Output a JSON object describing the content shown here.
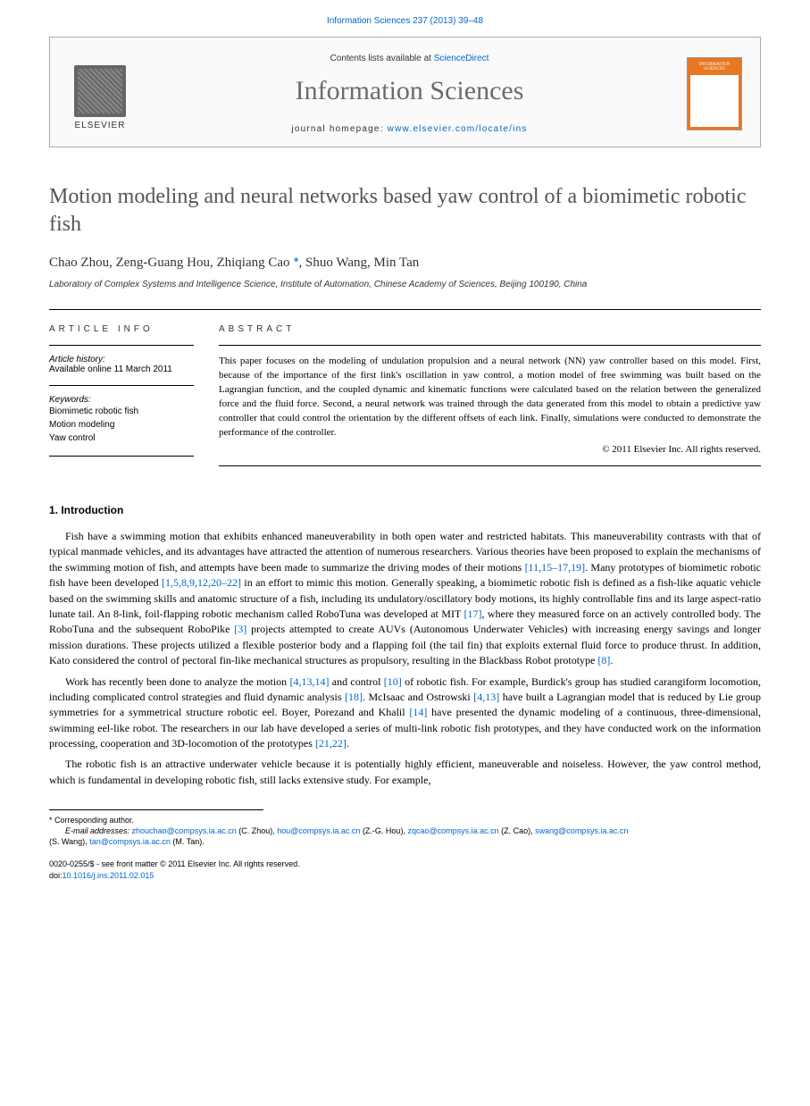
{
  "header": {
    "top_link": "Information Sciences 237 (2013) 39–48",
    "contents_line_prefix": "Contents lists available at ",
    "contents_line_link": "ScienceDirect",
    "journal_title": "Information Sciences",
    "homepage_prefix": "journal homepage: ",
    "homepage_url": "www.elsevier.com/locate/ins",
    "elsevier_label": "ELSEVIER",
    "cover_label": "INFORMATION SCIENCES"
  },
  "article": {
    "title": "Motion modeling and neural networks based yaw control of a biomimetic robotic fish",
    "authors_prefix": "Chao Zhou, Zeng-Guang Hou, Zhiqiang Cao",
    "corr_mark": " *",
    "authors_suffix": ", Shuo Wang, Min Tan",
    "affiliation": "Laboratory of Complex Systems and Intelligence Science, Institute of Automation, Chinese Academy of Sciences, Beijing 100190, China"
  },
  "meta": {
    "article_info_heading": "ARTICLE INFO",
    "abstract_heading": "ABSTRACT",
    "history_label": "Article history:",
    "history_value": "Available online 11 March 2011",
    "keywords_label": "Keywords:",
    "keywords": [
      "Biomimetic robotic fish",
      "Motion modeling",
      "Yaw control"
    ],
    "abstract": "This paper focuses on the modeling of undulation propulsion and a neural network (NN) yaw controller based on this model. First, because of the importance of the first link's oscillation in yaw control, a motion model of free swimming was built based on the Lagrangian function, and the coupled dynamic and kinematic functions were calculated based on the relation between the generalized force and the fluid force. Second, a neural network was trained through the data generated from this model to obtain a predictive yaw controller that could control the orientation by the different offsets of each link. Finally, simulations were conducted to demonstrate the performance of the controller.",
    "copyright": "© 2011 Elsevier Inc. All rights reserved."
  },
  "body": {
    "section1_heading": "1. Introduction",
    "para1_a": "Fish have a swimming motion that exhibits enhanced maneuverability in both open water and restricted habitats. This maneuverability contrasts with that of typical manmade vehicles, and its advantages have attracted the attention of numerous researchers. Various theories have been proposed to explain the mechanisms of the swimming motion of fish, and attempts have been made to summarize the driving modes of their motions ",
    "para1_ref1": "[11,15–17,19]",
    "para1_b": ". Many prototypes of biomimetic robotic fish have been developed ",
    "para1_ref2": "[1,5,8,9,12,20–22]",
    "para1_c": " in an effort to mimic this motion. Generally speaking, a biomimetic robotic fish is defined as a fish-like aquatic vehicle based on the swimming skills and anatomic structure of a fish, including its undulatory/oscillatory body motions, its highly controllable fins and its large aspect-ratio lunate tail. An 8-link, foil-flapping robotic mechanism called RoboTuna was developed at MIT ",
    "para1_ref3": "[17]",
    "para1_d": ", where they measured force on an actively controlled body. The RoboTuna and the subsequent RoboPike ",
    "para1_ref4": "[3]",
    "para1_e": " projects attempted to create AUVs (Autonomous Underwater Vehicles) with increasing energy savings and longer mission durations. These projects utilized a flexible posterior body and a flapping foil (the tail fin) that exploits external fluid force to produce thrust. In addition, Kato considered the control of pectoral fin-like mechanical structures as propulsory, resulting in the Blackbass Robot prototype ",
    "para1_ref5": "[8]",
    "para1_f": ".",
    "para2_a": "Work has recently been done to analyze the motion ",
    "para2_ref1": "[4,13,14]",
    "para2_b": " and control ",
    "para2_ref2": "[10]",
    "para2_c": " of robotic fish. For example, Burdick's group has studied carangiform locomotion, including complicated control strategies and fluid dynamic analysis ",
    "para2_ref3": "[18]",
    "para2_d": ". McIsaac and Ostrowski ",
    "para2_ref4": "[4,13]",
    "para2_e": " have built a Lagrangian model that is reduced by Lie group symmetries for a symmetrical structure robotic eel. Boyer, Porezand and Khalil ",
    "para2_ref5": "[14]",
    "para2_f": " have presented the dynamic modeling of a continuous, three-dimensional, swimming eel-like robot. The researchers in our lab have developed a series of multi-link robotic fish prototypes, and they have conducted work on the information processing, cooperation and 3D-locomotion of the prototypes ",
    "para2_ref6": "[21,22]",
    "para2_g": ".",
    "para3": "The robotic fish is an attractive underwater vehicle because it is potentially highly efficient, maneuverable and noiseless. However, the yaw control method, which is fundamental in developing robotic fish, still lacks extensive study. For example,"
  },
  "footnotes": {
    "corr_label": "* Corresponding author.",
    "email_label": "E-mail addresses: ",
    "emails": [
      {
        "addr": "zhouchao@compsys.ia.ac.cn",
        "who": " (C. Zhou), "
      },
      {
        "addr": "hou@compsys.ia.ac.cn",
        "who": " (Z.-G. Hou), "
      },
      {
        "addr": "zqcao@compsys.ia.ac.cn",
        "who": " (Z. Cao), "
      },
      {
        "addr": "swang@compsys.ia.ac.cn",
        "who": " "
      }
    ],
    "emails_line2_prefix": "(S. Wang), ",
    "emails_line2_addr": "tan@compsys.ia.ac.cn",
    "emails_line2_suffix": " (M. Tan)."
  },
  "footer": {
    "line1": "0020-0255/$ - see front matter © 2011 Elsevier Inc. All rights reserved.",
    "doi_prefix": "doi:",
    "doi": "10.1016/j.ins.2011.02.015"
  },
  "colors": {
    "link": "#0066cc",
    "title_gray": "#6b6b6b",
    "cover_orange": "#e87722"
  }
}
